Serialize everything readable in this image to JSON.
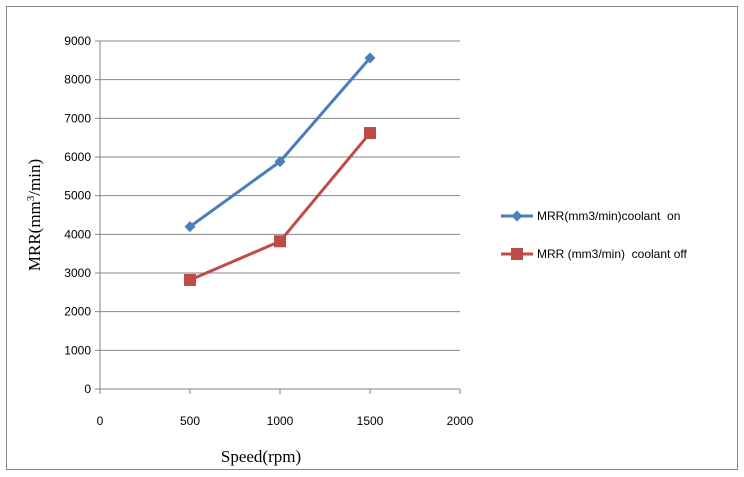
{
  "chart_data": {
    "type": "line",
    "title": "",
    "xlabel": "Speed(rpm)",
    "ylabel": "MRR(mm3/min)",
    "ylabel_parts": {
      "base": "MRR(mm",
      "sup": "3",
      "tail": "/min)"
    },
    "xlim": [
      0,
      2000
    ],
    "ylim": [
      0,
      9000
    ],
    "x_ticks": [
      0,
      500,
      1000,
      1500,
      2000
    ],
    "y_ticks": [
      0,
      1000,
      2000,
      3000,
      4000,
      5000,
      6000,
      7000,
      8000,
      9000
    ],
    "grid": {
      "horizontal": true,
      "vertical": false
    },
    "legend_position": "right",
    "series": [
      {
        "name": "MRR(mm3/min)coolant  on",
        "color": "#4a7ebb",
        "marker": "diamond",
        "x": [
          500,
          1000,
          1500
        ],
        "y": [
          4200,
          5880,
          8560
        ]
      },
      {
        "name": "MRR (mm3/min)  coolant off",
        "color": "#be4b48",
        "marker": "square",
        "x": [
          500,
          1000,
          1500
        ],
        "y": [
          2820,
          3820,
          6620
        ]
      }
    ]
  }
}
